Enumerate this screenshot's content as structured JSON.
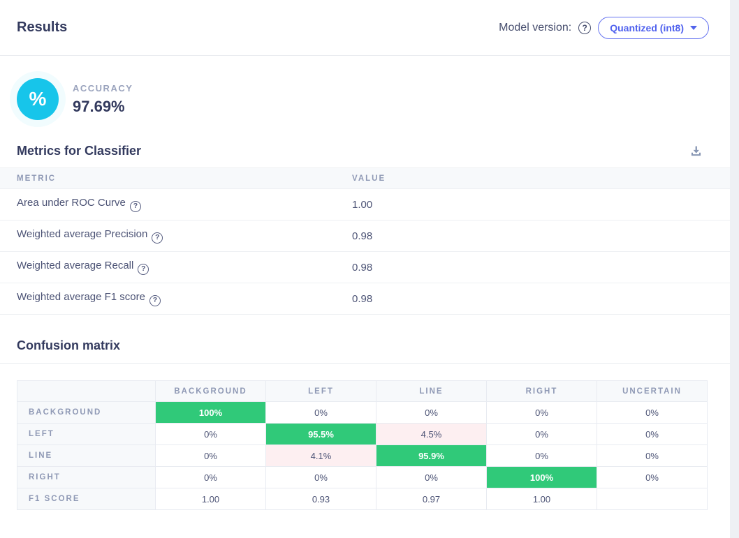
{
  "header": {
    "title": "Results",
    "model_version_label": "Model version:",
    "dropdown_value": "Quantized (int8)"
  },
  "accuracy": {
    "label": "ACCURACY",
    "value": "97.69%",
    "icon_glyph": "%"
  },
  "metrics": {
    "title": "Metrics for Classifier",
    "columns": [
      "METRIC",
      "VALUE"
    ],
    "rows": [
      {
        "metric": "Area under ROC Curve",
        "value": "1.00"
      },
      {
        "metric": "Weighted average Precision",
        "value": "0.98"
      },
      {
        "metric": "Weighted average Recall",
        "value": "0.98"
      },
      {
        "metric": "Weighted average F1 score",
        "value": "0.98"
      }
    ]
  },
  "confusion_matrix": {
    "title": "Confusion matrix",
    "columns": [
      "BACKGROUND",
      "LEFT",
      "LINE",
      "RIGHT",
      "UNCERTAIN"
    ],
    "rows": [
      {
        "label": "BACKGROUND",
        "cells": [
          "100%",
          "0%",
          "0%",
          "0%",
          "0%"
        ],
        "kinds": [
          "good",
          "",
          "",
          "",
          ""
        ]
      },
      {
        "label": "LEFT",
        "cells": [
          "0%",
          "95.5%",
          "4.5%",
          "0%",
          "0%"
        ],
        "kinds": [
          "",
          "good",
          "bad",
          "",
          ""
        ]
      },
      {
        "label": "LINE",
        "cells": [
          "0%",
          "4.1%",
          "95.9%",
          "0%",
          "0%"
        ],
        "kinds": [
          "",
          "bad",
          "good",
          "",
          ""
        ]
      },
      {
        "label": "RIGHT",
        "cells": [
          "0%",
          "0%",
          "0%",
          "100%",
          "0%"
        ],
        "kinds": [
          "",
          "",
          "",
          "good",
          ""
        ]
      },
      {
        "label": "F1 SCORE",
        "cells": [
          "1.00",
          "0.93",
          "0.97",
          "1.00",
          ""
        ],
        "kinds": [
          "",
          "",
          "",
          "",
          ""
        ]
      }
    ]
  },
  "colors": {
    "accent_blue": "#4f61ee",
    "accuracy_cyan": "#17c5ea",
    "matrix_green": "#30c979",
    "matrix_pink": "#fdeff1",
    "heading_navy": "#333a5e",
    "muted_label": "#8f99b5"
  }
}
